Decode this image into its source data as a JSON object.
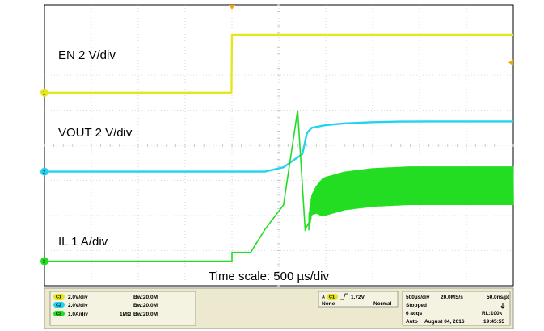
{
  "chart_data": {
    "type": "line",
    "title": "",
    "time_scale_label": "Time scale: 500 µs/div",
    "x_unit": "ms",
    "xlim": [
      -2.0,
      3.0
    ],
    "series": [
      {
        "name": "EN 2 V/div",
        "channel": "1",
        "color": "#e6e61e",
        "marker": "1",
        "x": [
          -2.0,
          -0.005,
          0.0,
          3.0
        ],
        "y": [
          0.0,
          0.0,
          3.3,
          3.3
        ]
      },
      {
        "name": "VOUT 2 V/div",
        "channel": "2",
        "color": "#25d2ee",
        "marker": "2",
        "x": [
          -2.0,
          0.35,
          0.55,
          0.75,
          0.8,
          0.85,
          1.0,
          1.2,
          1.5,
          1.8,
          2.1,
          2.5,
          3.0
        ],
        "y": [
          0.0,
          0.0,
          0.25,
          1.0,
          2.2,
          2.5,
          2.65,
          2.75,
          2.82,
          2.85,
          2.86,
          2.86,
          2.86
        ]
      },
      {
        "name": "IL 1 A/div",
        "channel": "3",
        "color": "#22dd22",
        "marker": "3",
        "x": [
          -2.0,
          0.0,
          0.0,
          0.2,
          0.35,
          0.55,
          0.7,
          0.78,
          0.82,
          0.85,
          0.9,
          1.0,
          1.2,
          1.5,
          1.9,
          2.5,
          3.0
        ],
        "y": [
          0.0,
          0.0,
          0.25,
          0.25,
          0.9,
          1.6,
          4.3,
          0.9,
          1.1,
          1.6,
          1.75,
          1.85,
          2.0,
          2.1,
          2.15,
          2.15,
          2.15
        ]
      }
    ]
  },
  "status_bar": {
    "channels": [
      {
        "badge": "C1",
        "scale": "2.0V/div",
        "coupling": "",
        "bw": "Bᴡ:20.0M"
      },
      {
        "badge": "C2",
        "scale": "2.0V/div",
        "coupling": "",
        "bw": "Bᴡ:20.0M"
      },
      {
        "badge": "C3",
        "scale": "1.0A/div",
        "coupling": "1MΩ",
        "bw": "Bᴡ:20.0M"
      }
    ],
    "trigger": {
      "badge": "C1",
      "level": "1.72V",
      "source": "None",
      "mode": "Normal"
    },
    "acquisition": {
      "timebase": "500µs/div",
      "sample_rate": "20.0MS/s",
      "resolution": "50.0ns/pt",
      "state": "Stopped",
      "acqs": "6 acqs",
      "record_length": "RL:100k",
      "mode": "Auto",
      "date": "August 04, 2016",
      "time": "19:45:55"
    }
  },
  "colors": {
    "background": "#ffffff",
    "grid": "#b8b8b8",
    "trigger_marker": "#f2a800",
    "status_bar_bg": "#ece9cf"
  }
}
